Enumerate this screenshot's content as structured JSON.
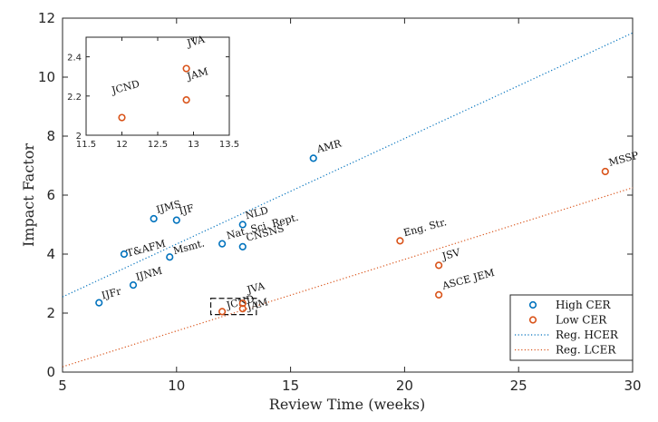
{
  "chart_data": {
    "type": "scatter",
    "xlabel": "Review Time (weeks)",
    "ylabel": "Impact Factor",
    "xlim": [
      5,
      30
    ],
    "ylim": [
      0,
      12
    ],
    "xticks": [
      "5",
      "10",
      "15",
      "20",
      "25",
      "30"
    ],
    "yticks": [
      "0",
      "2",
      "4",
      "6",
      "8",
      "10",
      "12"
    ],
    "grid": false,
    "legend_position": "bottom-right",
    "colors": {
      "high": "#0072BD",
      "low": "#D95319"
    },
    "legend": [
      {
        "label": "High CER",
        "kind": "marker",
        "color": "#0072BD"
      },
      {
        "label": "Low CER",
        "kind": "marker",
        "color": "#D95319"
      },
      {
        "label": "Reg. HCER",
        "kind": "dotted-line",
        "color": "#0072BD"
      },
      {
        "label": "Reg. LCER",
        "kind": "dotted-line",
        "color": "#D95319"
      }
    ],
    "series": [
      {
        "name": "High CER",
        "color": "#0072BD",
        "points": [
          {
            "x": 6.6,
            "y": 2.35,
            "label": "IJFr"
          },
          {
            "x": 8.1,
            "y": 2.95,
            "label": "IJNM"
          },
          {
            "x": 7.7,
            "y": 4.0,
            "label": "T&AFM"
          },
          {
            "x": 9.0,
            "y": 5.2,
            "label": "IJMS"
          },
          {
            "x": 10.0,
            "y": 5.15,
            "label": "IJF"
          },
          {
            "x": 9.7,
            "y": 3.9,
            "label": "Msmt."
          },
          {
            "x": 12.0,
            "y": 4.35,
            "label": "Nat. Sci. Rept."
          },
          {
            "x": 12.9,
            "y": 5.0,
            "label": "NLD"
          },
          {
            "x": 12.9,
            "y": 4.25,
            "label": "CNSNS"
          },
          {
            "x": 16.0,
            "y": 7.25,
            "label": "AMR"
          }
        ]
      },
      {
        "name": "Low CER",
        "color": "#D95319",
        "points": [
          {
            "x": 12.0,
            "y": 2.05,
            "label": "JCND"
          },
          {
            "x": 12.9,
            "y": 2.33,
            "label": "JVA"
          },
          {
            "x": 12.9,
            "y": 2.15,
            "label": "JAM"
          },
          {
            "x": 19.8,
            "y": 4.45,
            "label": "Eng. Str."
          },
          {
            "x": 21.5,
            "y": 3.62,
            "label": "JSV"
          },
          {
            "x": 21.5,
            "y": 2.62,
            "label": "ASCE JEM"
          },
          {
            "x": 28.8,
            "y": 6.8,
            "label": "MSSP"
          }
        ]
      }
    ],
    "regression_lines": [
      {
        "name": "Reg. HCER",
        "color": "#0072BD",
        "x": [
          5,
          30
        ],
        "y": [
          2.55,
          11.5
        ]
      },
      {
        "name": "Reg. LCER",
        "color": "#D95319",
        "x": [
          5,
          30
        ],
        "y": [
          0.18,
          6.25
        ]
      }
    ],
    "zoom_box": {
      "x": [
        11.5,
        13.5
      ],
      "y": [
        1.95,
        2.5
      ]
    },
    "inset": {
      "xlim": [
        11.5,
        13.5
      ],
      "ylim": [
        2.0,
        2.5
      ],
      "xticks": [
        "11.5",
        "12",
        "12.5",
        "13",
        "13.5"
      ],
      "yticks": [
        "2",
        "2.2",
        "2.4"
      ],
      "points": [
        {
          "x": 12.0,
          "y": 2.09,
          "label": "JCND"
        },
        {
          "x": 12.9,
          "y": 2.34,
          "label": "JVA"
        },
        {
          "x": 12.9,
          "y": 2.18,
          "label": "JAM"
        }
      ]
    }
  }
}
